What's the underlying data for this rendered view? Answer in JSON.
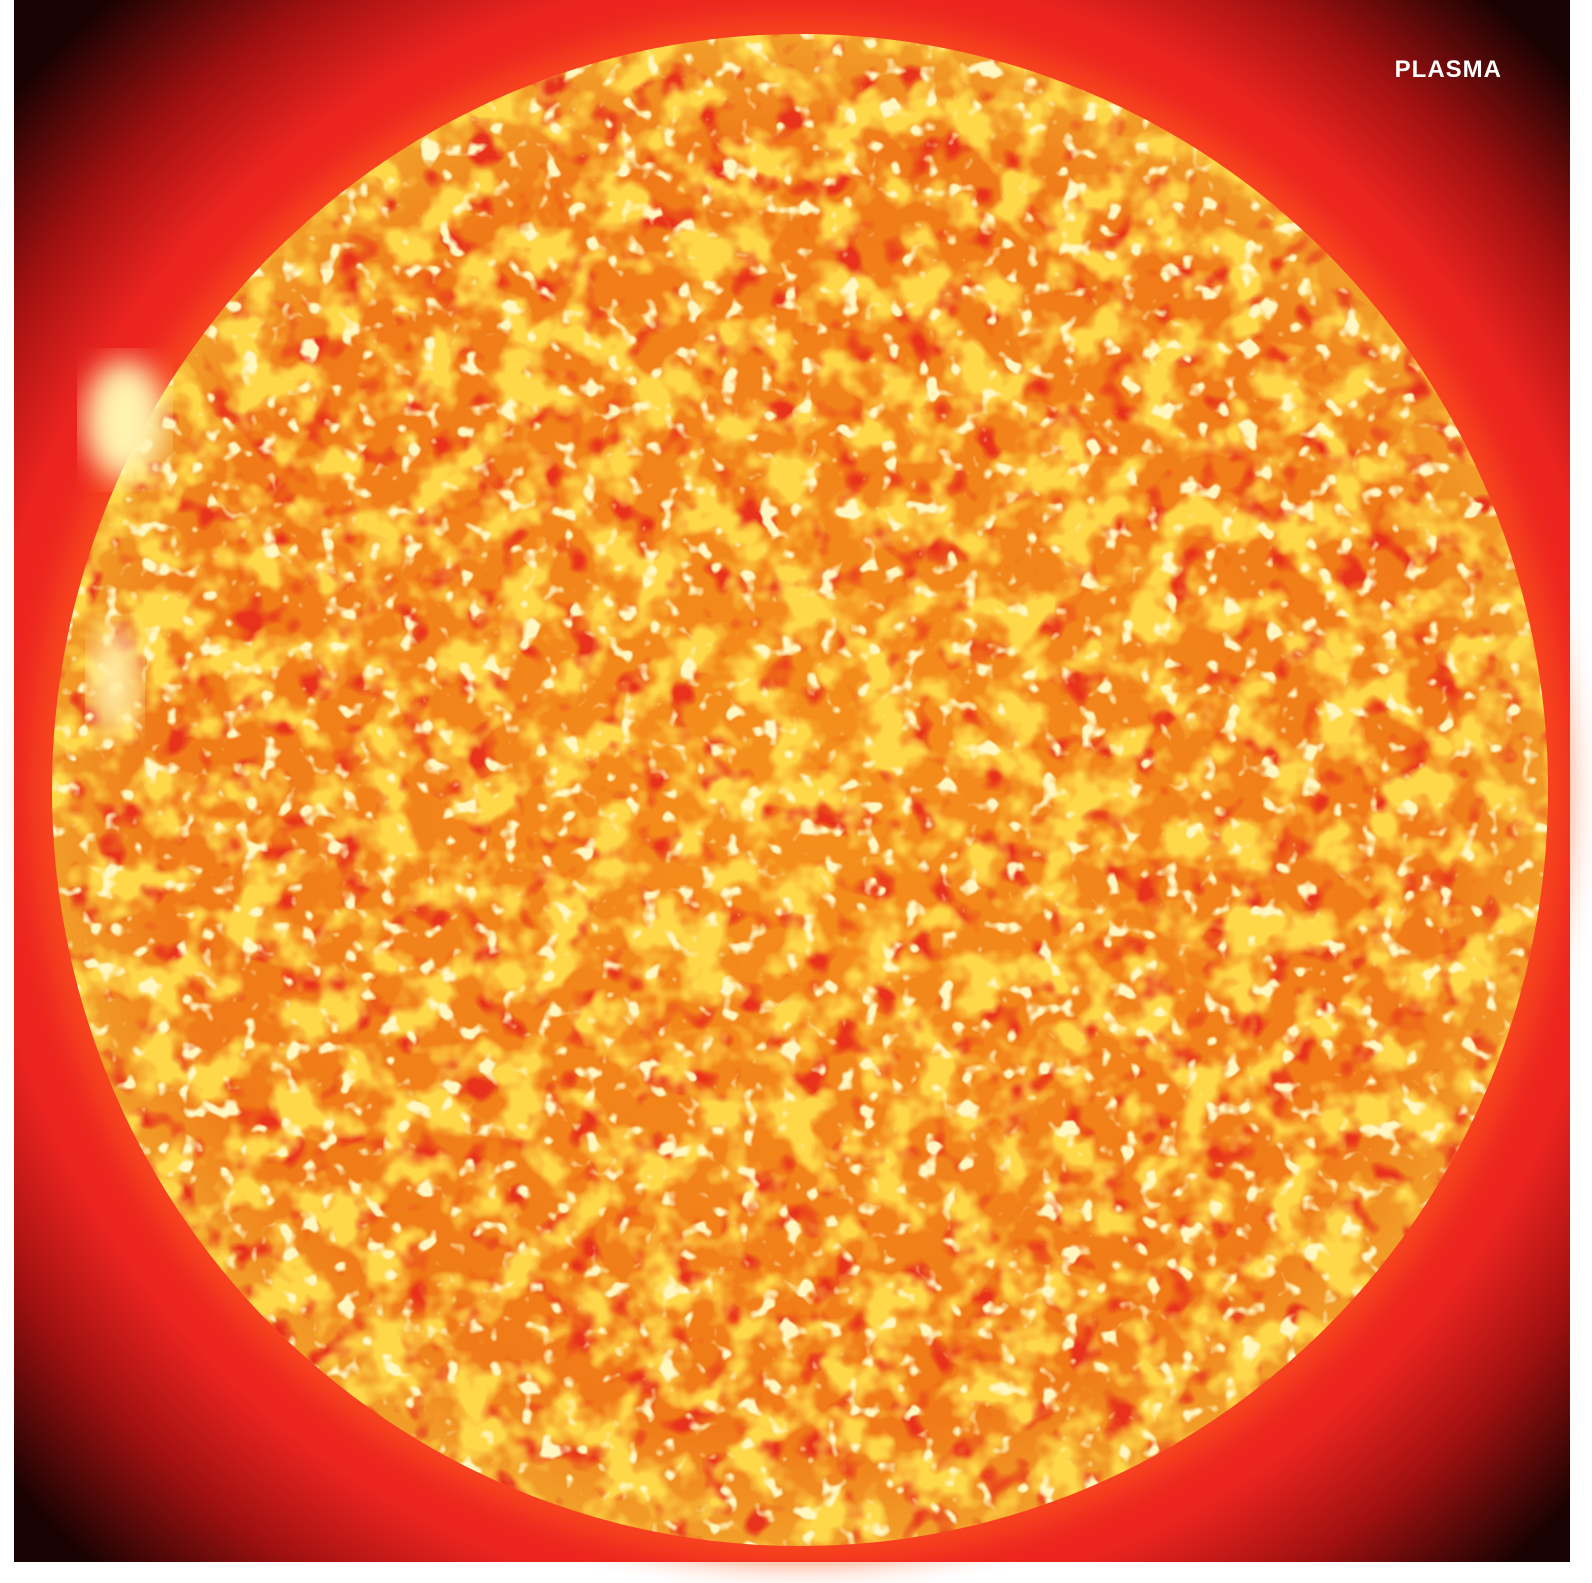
{
  "label": "PLASMA"
}
